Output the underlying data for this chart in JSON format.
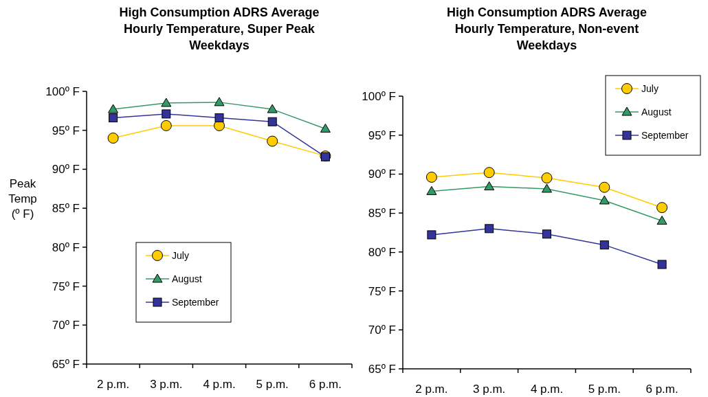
{
  "chart_data": [
    {
      "type": "line",
      "title": "High Consumption ADRS Average Hourly Temperature, Super Peak Weekdays",
      "ylabel": "Peak Temp (º F)",
      "categories": [
        "2 p.m.",
        "3 p.m.",
        "4 p.m.",
        "5 p.m.",
        "6 p.m."
      ],
      "series": [
        {
          "name": "July",
          "color": "#ffcc00",
          "marker": "circle",
          "values": [
            94.0,
            95.6,
            95.6,
            93.6,
            91.7
          ]
        },
        {
          "name": "August",
          "color": "#339966",
          "marker": "triangle",
          "values": [
            97.7,
            98.5,
            98.6,
            97.7,
            95.2
          ]
        },
        {
          "name": "September",
          "color": "#333399",
          "marker": "square",
          "values": [
            96.6,
            97.1,
            96.6,
            96.1,
            91.6
          ]
        }
      ],
      "ylim": [
        65,
        100
      ],
      "yticks": [
        {
          "value": 65,
          "label": "65º F"
        },
        {
          "value": 70,
          "label": "70º F"
        },
        {
          "value": 75,
          "label": "75º F"
        },
        {
          "value": 80,
          "label": "80º F"
        },
        {
          "value": 85,
          "label": "85º F"
        },
        {
          "value": 90,
          "label": "90º F"
        },
        {
          "value": 95,
          "label": "95º F"
        },
        {
          "value": 100,
          "label": "100º F"
        }
      ],
      "grid": false,
      "legend": "center"
    },
    {
      "type": "line",
      "title": "High Consumption ADRS Average Hourly Temperature, Non-event Weekdays",
      "categories": [
        "2 p.m.",
        "3 p.m.",
        "4 p.m.",
        "5 p.m.",
        "6 p.m."
      ],
      "series": [
        {
          "name": "July",
          "color": "#ffcc00",
          "marker": "circle",
          "values": [
            89.6,
            90.2,
            89.5,
            88.3,
            85.7
          ]
        },
        {
          "name": "August",
          "color": "#339966",
          "marker": "triangle",
          "values": [
            87.8,
            88.4,
            88.1,
            86.6,
            84.0
          ]
        },
        {
          "name": "September",
          "color": "#333399",
          "marker": "square",
          "values": [
            82.2,
            83.0,
            82.3,
            80.9,
            78.4
          ]
        }
      ],
      "ylim": [
        65,
        100
      ],
      "yticks": [
        {
          "value": 65,
          "label": "65º F"
        },
        {
          "value": 70,
          "label": "70º F"
        },
        {
          "value": 75,
          "label": "75º F"
        },
        {
          "value": 80,
          "label": "80º F"
        },
        {
          "value": 85,
          "label": "85º F"
        },
        {
          "value": 90,
          "label": "90º F"
        },
        {
          "value": 95,
          "label": "95º F"
        },
        {
          "value": 100,
          "label": "100º F"
        }
      ],
      "grid": false,
      "legend": "top right"
    }
  ]
}
